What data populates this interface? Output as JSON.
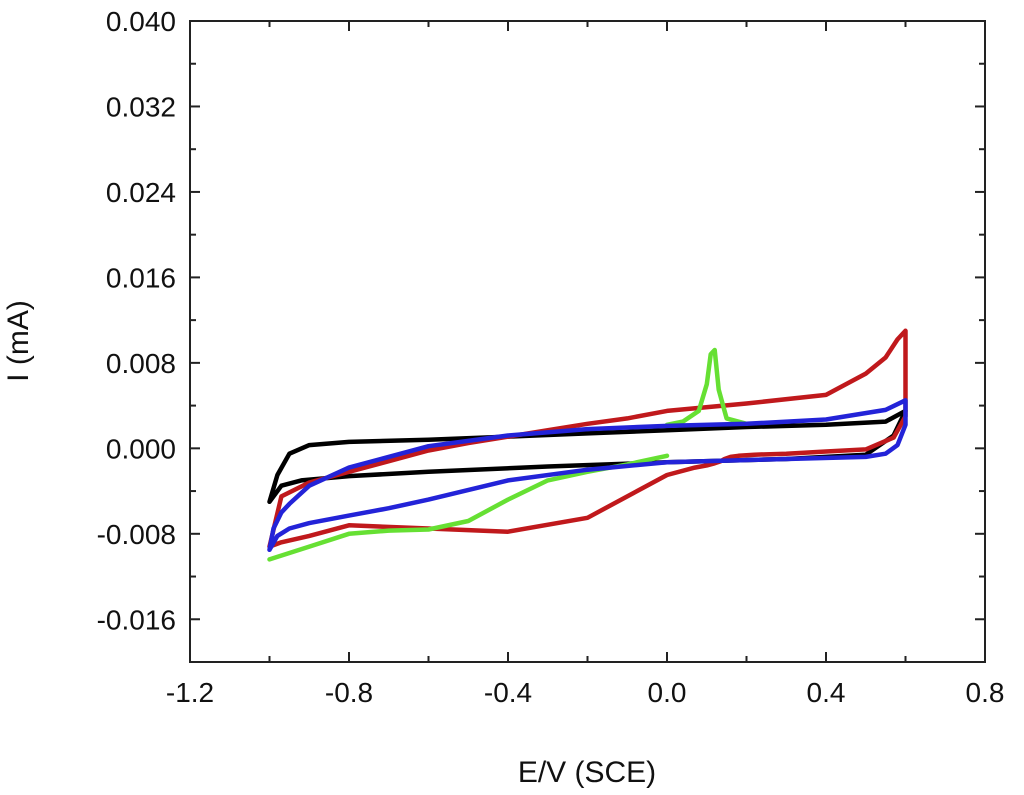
{
  "chart_data": {
    "type": "line",
    "title": "",
    "xlabel": "E/V (SCE)",
    "ylabel": "I (mA)",
    "xlim": [
      -1.2,
      0.8
    ],
    "ylim": [
      -0.02,
      0.04
    ],
    "x_ticks": [
      -1.2,
      -0.8,
      -0.4,
      0.0,
      0.4,
      0.8
    ],
    "x_tick_labels": [
      "-1.2",
      "-0.8",
      "-0.4",
      "0.0",
      "0.4",
      "0.8"
    ],
    "y_ticks": [
      0.04,
      0.032,
      0.024,
      0.016,
      0.008,
      0.0,
      -0.008,
      -0.016
    ],
    "y_tick_labels": [
      "0.040",
      "0.032",
      "0.024",
      "0.016",
      "0.008",
      "0.000",
      "-0.008",
      "-0.016"
    ],
    "grid": false,
    "legend": "none",
    "series": [
      {
        "color": "#000000",
        "x": [
          -1.0,
          -0.98,
          -0.95,
          -0.9,
          -0.8,
          -0.6,
          -0.4,
          -0.2,
          0.0,
          0.2,
          0.4,
          0.55,
          0.6,
          0.57,
          0.5,
          0.3,
          0.0,
          -0.3,
          -0.6,
          -0.8,
          -0.92,
          -0.97,
          -1.0
        ],
        "y": [
          -0.005,
          -0.0025,
          -0.0005,
          0.0003,
          0.0006,
          0.0008,
          0.0011,
          0.0014,
          0.0017,
          0.002,
          0.0022,
          0.0025,
          0.0035,
          0.0012,
          -0.0006,
          -0.001,
          -0.0013,
          -0.0017,
          -0.0022,
          -0.0026,
          -0.003,
          -0.0035,
          -0.005
        ]
      },
      {
        "color": "#c0191c",
        "x": [
          -1.0,
          -0.97,
          -0.9,
          -0.8,
          -0.6,
          -0.4,
          -0.2,
          0.0,
          0.07,
          0.1,
          0.12,
          0.135,
          0.145,
          0.16,
          0.18,
          0.22,
          0.3,
          0.4,
          0.5,
          0.57,
          0.6,
          0.6,
          0.58,
          0.55,
          0.5,
          0.4,
          0.2,
          0.0,
          -0.1,
          -0.2,
          -0.3,
          -0.4,
          -0.5,
          -0.6,
          -0.7,
          -0.8,
          -0.9,
          -0.97,
          -1.0
        ],
        "y": [
          -0.0092,
          -0.0088,
          -0.0082,
          -0.0072,
          -0.0075,
          -0.0078,
          -0.0065,
          -0.0025,
          -0.0018,
          -0.0016,
          -0.0014,
          -0.0012,
          -0.001,
          -0.0008,
          -0.0007,
          -0.0006,
          -0.0005,
          -0.0003,
          -0.0001,
          0.001,
          0.003,
          0.011,
          0.0102,
          0.0085,
          0.007,
          0.005,
          0.0042,
          0.0035,
          0.0028,
          0.0023,
          0.0017,
          0.0011,
          0.0005,
          -0.0002,
          -0.0012,
          -0.0022,
          -0.0032,
          -0.0045,
          -0.0092
        ]
      },
      {
        "color": "#66e033",
        "x": [
          -1.0,
          -0.9,
          -0.8,
          -0.7,
          -0.6,
          -0.5,
          -0.4,
          -0.3,
          -0.2,
          -0.1,
          0.0
        ],
        "y": [
          -0.0104,
          -0.0092,
          -0.008,
          -0.0077,
          -0.0076,
          -0.0068,
          -0.0048,
          -0.003,
          -0.0022,
          -0.0015,
          -0.0007
        ]
      },
      {
        "color": "#66e033",
        "x": [
          0.0,
          0.04,
          0.08,
          0.1,
          0.11,
          0.12,
          0.13,
          0.15,
          0.2
        ],
        "y": [
          0.0022,
          0.0025,
          0.0035,
          0.006,
          0.0088,
          0.0092,
          0.0055,
          0.0028,
          0.0023
        ]
      },
      {
        "color": "#2323d8",
        "x": [
          -1.0,
          -0.99,
          -0.97,
          -0.95,
          -0.9,
          -0.8,
          -0.6,
          -0.4,
          -0.2,
          0.0,
          0.2,
          0.4,
          0.55,
          0.6,
          0.6,
          0.58,
          0.55,
          0.5,
          0.3,
          0.0,
          -0.2,
          -0.4,
          -0.6,
          -0.7,
          -0.8,
          -0.9,
          -0.95,
          -0.98,
          -1.0
        ],
        "y": [
          -0.0095,
          -0.0075,
          -0.006,
          -0.0052,
          -0.0035,
          -0.0018,
          0.0002,
          0.0012,
          0.0018,
          0.0021,
          0.0023,
          0.0027,
          0.0036,
          0.0045,
          0.0022,
          0.0003,
          -0.0005,
          -0.0008,
          -0.001,
          -0.0013,
          -0.002,
          -0.003,
          -0.0048,
          -0.0056,
          -0.0063,
          -0.007,
          -0.0075,
          -0.0082,
          -0.0095
        ]
      }
    ]
  }
}
